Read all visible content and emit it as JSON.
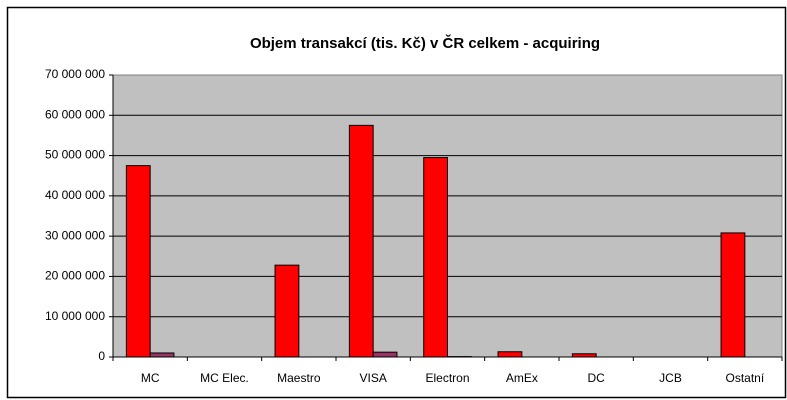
{
  "chart_data": {
    "type": "bar",
    "title": "Objem transakcí (tis. Kč) v ČR celkem - acquiring",
    "categories": [
      "MC",
      "MC Elec.",
      "Maestro",
      "VISA",
      "Electron",
      "AmEx",
      "DC",
      "JCB",
      "Ostatní"
    ],
    "series": [
      {
        "color": "#ff0000",
        "values": [
          47500000,
          0,
          22800000,
          57500000,
          49500000,
          1300000,
          800000,
          0,
          30800000
        ]
      },
      {
        "color": "#993366",
        "values": [
          1000000,
          0,
          0,
          1200000,
          100000,
          0,
          0,
          0,
          0
        ]
      }
    ],
    "ylim": [
      0,
      70000000
    ],
    "yticks": [
      0,
      {
        "value": 10000000,
        "label": "10 000 000"
      },
      {
        "value": 20000000,
        "label": "20 000 000"
      },
      {
        "value": 30000000,
        "label": "30 000 000"
      },
      {
        "value": 40000000,
        "label": "40 000 000"
      },
      {
        "value": 50000000,
        "label": "50 000 000"
      },
      {
        "value": 60000000,
        "label": "60 000 000"
      },
      {
        "value": 70000000,
        "label": "70 000 000"
      }
    ],
    "grid": true
  }
}
